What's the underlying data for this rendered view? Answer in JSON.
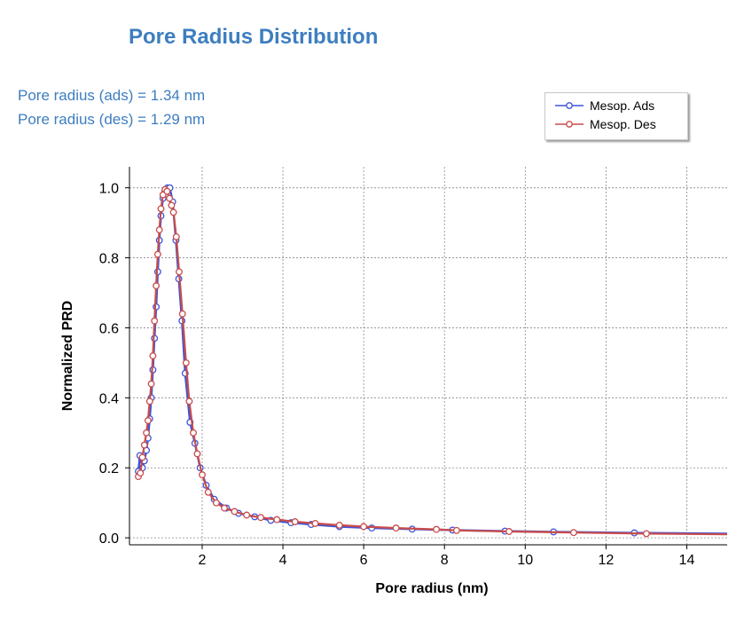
{
  "header": {
    "title": "Pore Radius Distribution",
    "info_ads": "Pore radius (ads) = 1.34 nm",
    "info_des": "Pore radius (des) = 1.29 nm"
  },
  "colors": {
    "title": "#3d7ebf",
    "ads": "#3f55d6",
    "des": "#c84c4c",
    "grid": "#888888"
  },
  "chart_data": {
    "type": "line",
    "title": "Pore Radius Distribution",
    "xlabel": "Pore radius (nm)",
    "ylabel": "Normalized PRD",
    "xlim": [
      0.2,
      15
    ],
    "ylim": [
      -0.02,
      1.06
    ],
    "xticks": [
      2,
      4,
      6,
      8,
      10,
      12,
      14
    ],
    "xtick_labels": [
      "2",
      "4",
      "6",
      "8",
      "10",
      "12",
      "14"
    ],
    "yticks": [
      0.0,
      0.2,
      0.4,
      0.6,
      0.8,
      1.0
    ],
    "ytick_labels": [
      "0.0",
      "0.2",
      "0.4",
      "0.6",
      "0.8",
      "1.0"
    ],
    "grid": true,
    "legend_position": "top-right",
    "series": [
      {
        "name": "Mesop. Ads",
        "color": "#3f55d6",
        "x": [
          0.42,
          0.46,
          0.52,
          0.57,
          0.62,
          0.66,
          0.7,
          0.74,
          0.78,
          0.82,
          0.86,
          0.9,
          0.94,
          0.98,
          1.03,
          1.08,
          1.14,
          1.2,
          1.27,
          1.35,
          1.42,
          1.5,
          1.58,
          1.7,
          1.82,
          1.95,
          2.1,
          2.3,
          2.6,
          2.9,
          3.3,
          3.7,
          4.2,
          4.7,
          5.4,
          6.2,
          7.2,
          8.2,
          9.5,
          10.7,
          12.7,
          15.0
        ],
        "y": [
          0.19,
          0.235,
          0.2,
          0.22,
          0.25,
          0.285,
          0.34,
          0.4,
          0.48,
          0.57,
          0.66,
          0.76,
          0.85,
          0.92,
          0.97,
          0.99,
          1.0,
          1.0,
          0.96,
          0.85,
          0.74,
          0.62,
          0.47,
          0.33,
          0.27,
          0.2,
          0.15,
          0.11,
          0.085,
          0.07,
          0.06,
          0.05,
          0.043,
          0.038,
          0.032,
          0.028,
          0.025,
          0.022,
          0.019,
          0.017,
          0.014,
          0.012
        ]
      },
      {
        "name": "Mesop. Des",
        "color": "#c84c4c",
        "x": [
          0.42,
          0.47,
          0.52,
          0.57,
          0.62,
          0.66,
          0.7,
          0.74,
          0.78,
          0.82,
          0.86,
          0.9,
          0.94,
          0.98,
          1.03,
          1.08,
          1.13,
          1.19,
          1.24,
          1.29,
          1.36,
          1.43,
          1.51,
          1.6,
          1.68,
          1.78,
          1.88,
          2.0,
          2.15,
          2.35,
          2.55,
          2.8,
          3.1,
          3.45,
          3.85,
          4.3,
          4.8,
          5.4,
          6.0,
          6.8,
          7.8,
          8.3,
          9.6,
          11.2,
          13.0,
          15.0
        ],
        "y": [
          0.175,
          0.185,
          0.23,
          0.265,
          0.3,
          0.335,
          0.39,
          0.44,
          0.52,
          0.62,
          0.72,
          0.81,
          0.88,
          0.94,
          0.98,
          0.995,
          0.99,
          0.97,
          0.95,
          0.93,
          0.86,
          0.76,
          0.64,
          0.5,
          0.39,
          0.3,
          0.24,
          0.18,
          0.13,
          0.1,
          0.085,
          0.075,
          0.065,
          0.058,
          0.052,
          0.046,
          0.041,
          0.036,
          0.032,
          0.028,
          0.024,
          0.021,
          0.018,
          0.015,
          0.012,
          0.01
        ]
      }
    ]
  }
}
